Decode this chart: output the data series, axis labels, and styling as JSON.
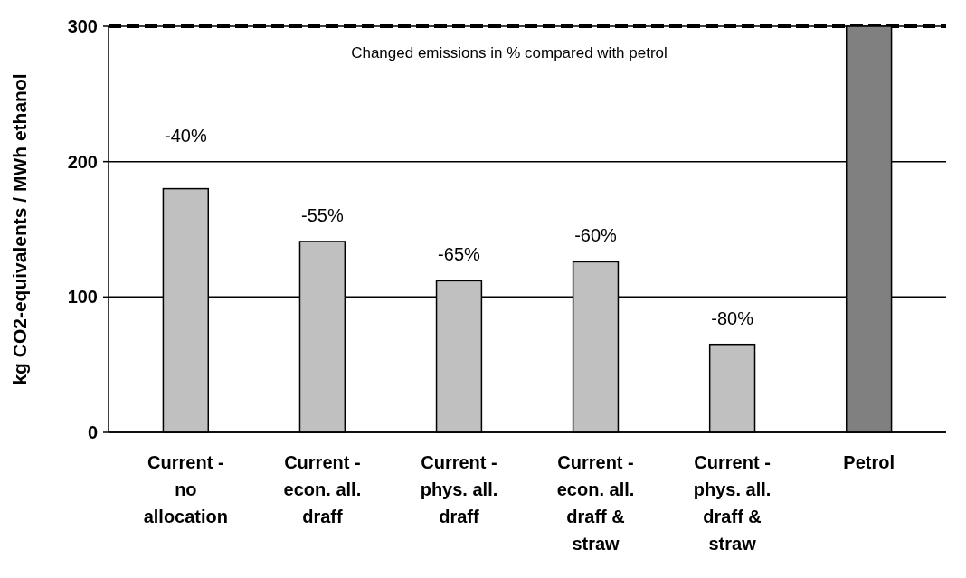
{
  "chart_data": {
    "type": "bar",
    "ylabel": "kg CO2-equivalents / MWh ethanol",
    "categories": [
      "Current - no allocation",
      "Current - econ. all. draff",
      "Current - phys. all. draff",
      "Current - econ. all. draff & straw",
      "Current - phys. all. draff & straw",
      "Petrol"
    ],
    "values": [
      180,
      141,
      112,
      126,
      65,
      300
    ],
    "colors": [
      "#c0c0c0",
      "#c0c0c0",
      "#c0c0c0",
      "#c0c0c0",
      "#c0c0c0",
      "#808080"
    ],
    "ylim": [
      0,
      300
    ],
    "yticks": [
      0,
      100,
      200,
      300
    ],
    "grid": "y",
    "ref_lines": [
      {
        "axis": "y",
        "value": 300,
        "color": "#000000",
        "line_style": "dashed"
      }
    ],
    "annotations": [
      "Changed emissions in % compared with petrol",
      {
        "text": "-40%",
        "x": "Current - no allocation",
        "y": 180
      },
      {
        "text": "-55%",
        "x": "Current - econ. all. draff",
        "y": 141
      },
      {
        "text": "-65%",
        "x": "Current - phys. all. draff",
        "y": 112
      },
      {
        "text": "-60%",
        "x": "Current - econ. all. draff & straw",
        "y": 126
      },
      {
        "text": "-80%",
        "x": "Current - phys. all. draff & straw",
        "y": 65
      }
    ]
  }
}
